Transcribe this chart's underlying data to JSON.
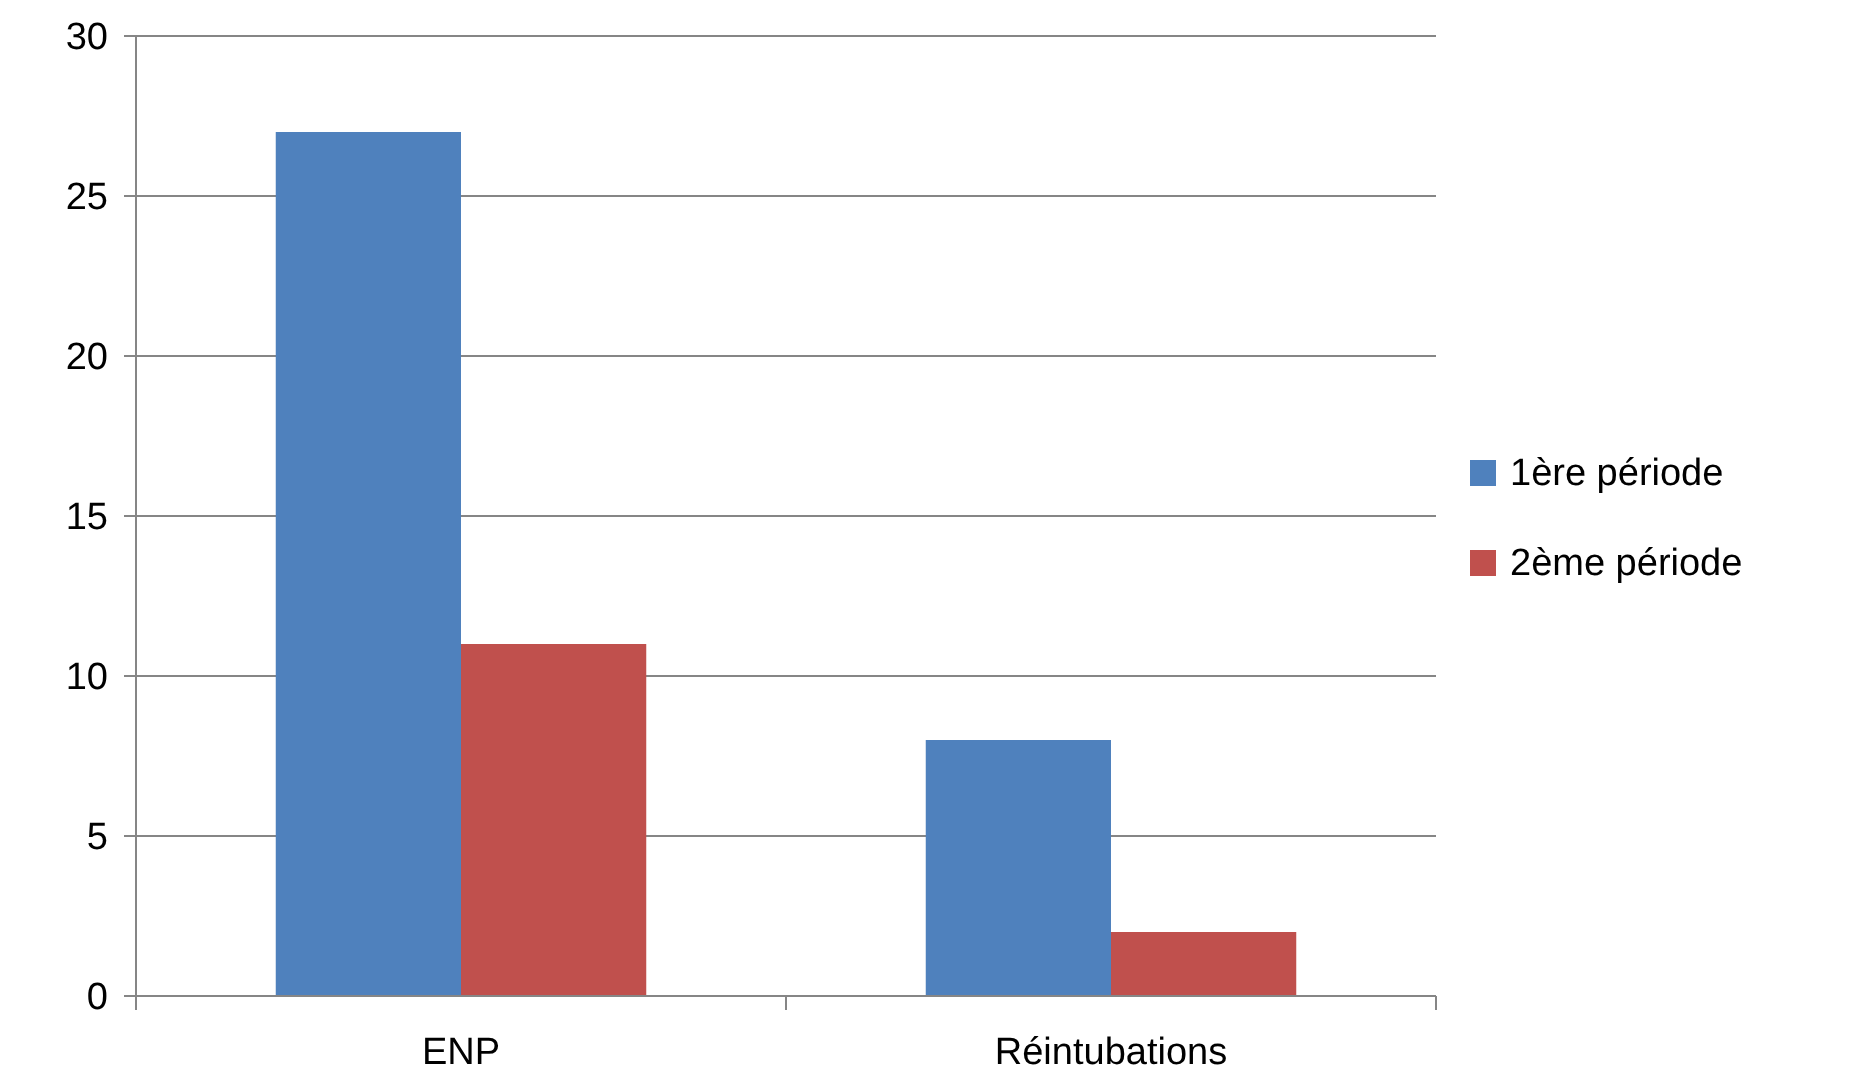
{
  "chart_data": {
    "type": "bar",
    "categories": [
      "ENP",
      "Réintubations"
    ],
    "series": [
      {
        "name": "1ère période",
        "color": "#4f81bd",
        "values": [
          27,
          8
        ]
      },
      {
        "name": "2ème période",
        "color": "#c0504d",
        "values": [
          11,
          2
        ]
      }
    ],
    "ylim": [
      0,
      30
    ],
    "yticks": [
      0,
      5,
      10,
      15,
      20,
      25,
      30
    ],
    "grid": "y",
    "legend": "right"
  }
}
